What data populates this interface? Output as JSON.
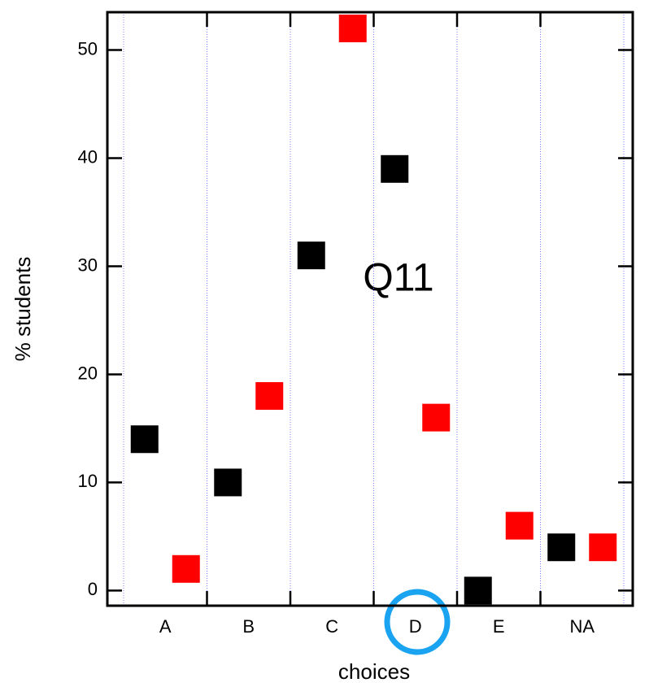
{
  "chart_data": {
    "type": "scatter",
    "annotation": "Q11",
    "x_label": "choices",
    "y_label": "% students",
    "categories": [
      "A",
      "B",
      "C",
      "D",
      "E",
      "NA"
    ],
    "series": [
      {
        "color": "#000000",
        "values": [
          14,
          10,
          31,
          39,
          0,
          4
        ]
      },
      {
        "color": "#ff0000",
        "values": [
          2,
          18,
          52,
          16,
          6,
          4
        ]
      }
    ],
    "ylim": [
      -1.4,
      53.5
    ],
    "yticks": [
      0,
      10,
      20,
      30,
      40,
      50
    ],
    "grid": true
  }
}
